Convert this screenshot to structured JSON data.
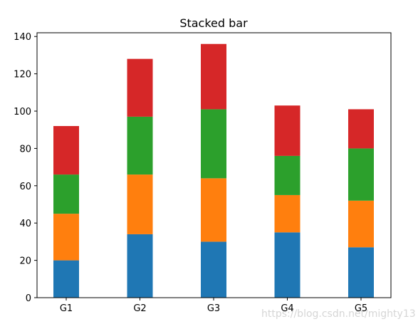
{
  "chart_data": {
    "type": "bar",
    "stacked": true,
    "title": "Stacked bar",
    "xlabel": "",
    "ylabel": "",
    "categories": [
      "G1",
      "G2",
      "G3",
      "G4",
      "G5"
    ],
    "series": [
      {
        "values": [
          20,
          34,
          30,
          35,
          27
        ],
        "color": "#1f77b4"
      },
      {
        "values": [
          25,
          32,
          34,
          20,
          25
        ],
        "color": "#ff7f0e"
      },
      {
        "values": [
          21,
          31,
          37,
          21,
          28
        ],
        "color": "#2ca02c"
      },
      {
        "values": [
          26,
          31,
          35,
          27,
          21
        ],
        "color": "#d62728"
      }
    ],
    "ylim": [
      0,
      142
    ],
    "yticks": [
      0,
      20,
      40,
      60,
      80,
      100,
      120,
      140
    ],
    "grid": false,
    "legend": "none"
  },
  "watermark": "https://blog.csdn.net/mighty13"
}
